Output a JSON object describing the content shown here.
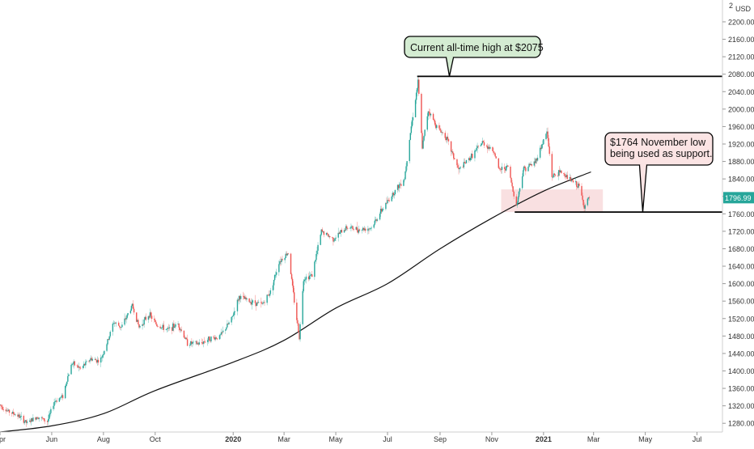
{
  "chart_data": {
    "type": "candlestick",
    "currency_label": "USD",
    "y_range": [
      1260,
      2250
    ],
    "y_ticks": [
      1280,
      1320,
      1360,
      1400,
      1440,
      1480,
      1520,
      1560,
      1600,
      1640,
      1680,
      1720,
      1760,
      1800,
      1840,
      1880,
      1920,
      1960,
      2000,
      2040,
      2080,
      2120,
      2160,
      2200
    ],
    "y_tick_labels": [
      "1280.00",
      "1320.00",
      "1360.00",
      "1400.00",
      "1440.00",
      "1480.00",
      "1520.00",
      "1560.00",
      "1600.00",
      "1640.00",
      "1680.00",
      "1720.00",
      "1760.00",
      "1800.00",
      "1840.00",
      "1880.00",
      "1920.00",
      "1960.00",
      "2000.00",
      "2040.00",
      "2080.00",
      "2120.00",
      "2160.00",
      "2200.00"
    ],
    "top_cut_label": "2",
    "x_range": [
      "2019-04-01",
      "2021-07-31"
    ],
    "x_ticks": [
      {
        "date": "2019-04-01",
        "label": "Apr",
        "bold": false
      },
      {
        "date": "2019-06-01",
        "label": "Jun",
        "bold": false
      },
      {
        "date": "2019-08-01",
        "label": "Aug",
        "bold": false
      },
      {
        "date": "2019-10-01",
        "label": "Oct",
        "bold": false
      },
      {
        "date": "2020-01-01",
        "label": "2020",
        "bold": true
      },
      {
        "date": "2020-03-01",
        "label": "Mar",
        "bold": false
      },
      {
        "date": "2020-05-01",
        "label": "May",
        "bold": false
      },
      {
        "date": "2020-07-01",
        "label": "Jul",
        "bold": false
      },
      {
        "date": "2020-09-01",
        "label": "Sep",
        "bold": false
      },
      {
        "date": "2020-11-01",
        "label": "Nov",
        "bold": false
      },
      {
        "date": "2021-01-01",
        "label": "2021",
        "bold": true
      },
      {
        "date": "2021-03-01",
        "label": "Mar",
        "bold": false
      },
      {
        "date": "2021-05-01",
        "label": "May",
        "bold": false
      },
      {
        "date": "2021-07-01",
        "label": "Jul",
        "bold": false
      }
    ],
    "price_path": [
      [
        "2019-04-01",
        1322
      ],
      [
        "2019-04-10",
        1308
      ],
      [
        "2019-04-22",
        1298
      ],
      [
        "2019-05-03",
        1280
      ],
      [
        "2019-05-15",
        1296
      ],
      [
        "2019-05-27",
        1284
      ],
      [
        "2019-06-04",
        1330
      ],
      [
        "2019-06-14",
        1342
      ],
      [
        "2019-06-21",
        1395
      ],
      [
        "2019-06-25",
        1418
      ],
      [
        "2019-07-05",
        1405
      ],
      [
        "2019-07-17",
        1428
      ],
      [
        "2019-07-28",
        1422
      ],
      [
        "2019-08-06",
        1468
      ],
      [
        "2019-08-13",
        1512
      ],
      [
        "2019-08-22",
        1500
      ],
      [
        "2019-09-04",
        1550
      ],
      [
        "2019-09-12",
        1500
      ],
      [
        "2019-09-24",
        1530
      ],
      [
        "2019-10-03",
        1505
      ],
      [
        "2019-10-16",
        1494
      ],
      [
        "2019-10-28",
        1508
      ],
      [
        "2019-11-08",
        1464
      ],
      [
        "2019-11-22",
        1462
      ],
      [
        "2019-12-04",
        1474
      ],
      [
        "2019-12-16",
        1478
      ],
      [
        "2019-12-30",
        1518
      ],
      [
        "2020-01-08",
        1570
      ],
      [
        "2020-01-20",
        1560
      ],
      [
        "2020-02-04",
        1552
      ],
      [
        "2020-02-14",
        1582
      ],
      [
        "2020-02-24",
        1650
      ],
      [
        "2020-03-06",
        1672
      ],
      [
        "2020-03-13",
        1560
      ],
      [
        "2020-03-19",
        1478
      ],
      [
        "2020-03-24",
        1612
      ],
      [
        "2020-04-03",
        1620
      ],
      [
        "2020-04-14",
        1720
      ],
      [
        "2020-04-28",
        1702
      ],
      [
        "2020-05-14",
        1730
      ],
      [
        "2020-05-28",
        1724
      ],
      [
        "2020-06-12",
        1728
      ],
      [
        "2020-06-24",
        1768
      ],
      [
        "2020-07-08",
        1808
      ],
      [
        "2020-07-21",
        1842
      ],
      [
        "2020-07-28",
        1948
      ],
      [
        "2020-08-06",
        2062
      ],
      [
        "2020-08-11",
        1912
      ],
      [
        "2020-08-18",
        1998
      ],
      [
        "2020-08-28",
        1960
      ],
      [
        "2020-09-08",
        1936
      ],
      [
        "2020-09-23",
        1860
      ],
      [
        "2020-10-08",
        1892
      ],
      [
        "2020-10-21",
        1924
      ],
      [
        "2020-11-04",
        1902
      ],
      [
        "2020-11-09",
        1860
      ],
      [
        "2020-11-20",
        1868
      ],
      [
        "2020-11-30",
        1778
      ],
      [
        "2020-12-08",
        1862
      ],
      [
        "2020-12-22",
        1878
      ],
      [
        "2021-01-05",
        1948
      ],
      [
        "2021-01-11",
        1846
      ],
      [
        "2021-01-22",
        1856
      ],
      [
        "2021-02-04",
        1834
      ],
      [
        "2021-02-12",
        1822
      ],
      [
        "2021-02-18",
        1776
      ],
      [
        "2021-02-24",
        1797
      ]
    ],
    "moving_average": [
      [
        "2019-04-01",
        1260
      ],
      [
        "2019-06-01",
        1274
      ],
      [
        "2019-08-01",
        1302
      ],
      [
        "2019-10-01",
        1355
      ],
      [
        "2020-01-01",
        1420
      ],
      [
        "2020-03-01",
        1470
      ],
      [
        "2020-05-01",
        1544
      ],
      [
        "2020-07-01",
        1600
      ],
      [
        "2020-09-01",
        1680
      ],
      [
        "2020-11-01",
        1750
      ],
      [
        "2021-01-01",
        1812
      ],
      [
        "2021-02-26",
        1856
      ]
    ],
    "last_price": 1796.99,
    "last_price_label": "1796.99",
    "annotations": [
      {
        "text": [
          "Current all-time high at $2075"
        ],
        "level": 2075,
        "line_from": "2020-08-05",
        "line_to": "2021-07-31",
        "pointer_date": "2020-09-12",
        "fill": "#d4ecd2"
      },
      {
        "text": [
          "$1764 November low",
          "being used as support."
        ],
        "level": 1764,
        "line_from": "2020-11-28",
        "line_to": "2021-07-31",
        "pointer_date": "2021-04-28",
        "fill": "#fbe4e4"
      }
    ],
    "support_zone": {
      "from": "2020-11-12",
      "to": "2021-03-12",
      "low": 1764,
      "high": 1816
    },
    "colors": {
      "up": "#26a69a",
      "down": "#ef5350",
      "moving_average": "#111111",
      "last_price": "#26a69a",
      "zone": "#f7d5d7",
      "axis_text": "#333333"
    },
    "grid": false
  }
}
